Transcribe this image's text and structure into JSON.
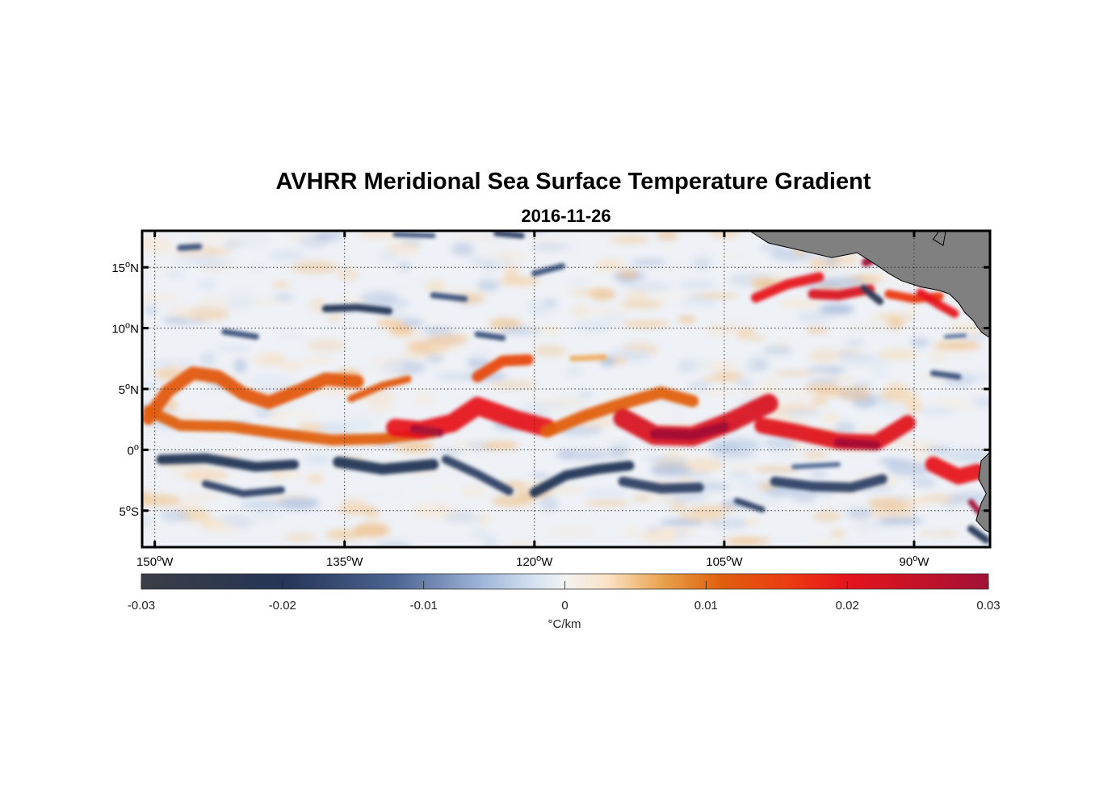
{
  "figure": {
    "title": "AVHRR Meridional Sea Surface Temperature Gradient",
    "subtitle": "2016-11-26"
  },
  "map": {
    "lon_range": [
      -151,
      -84
    ],
    "lat_range": [
      -8,
      18
    ],
    "lon_ticks": [
      {
        "value": -150,
        "label": "150°W"
      },
      {
        "value": -135,
        "label": "135°W"
      },
      {
        "value": -120,
        "label": "120°W"
      },
      {
        "value": -105,
        "label": "105°W"
      },
      {
        "value": -90,
        "label": "90°W"
      }
    ],
    "lat_ticks": [
      {
        "value": 15,
        "label": "15°N"
      },
      {
        "value": 10,
        "label": "10°N"
      },
      {
        "value": 5,
        "label": "5°N"
      },
      {
        "value": 0,
        "label": "0°"
      },
      {
        "value": -5,
        "label": "5°S"
      }
    ],
    "grid": true,
    "land_color": "#808080",
    "features": [
      {
        "type": "warm",
        "path": [
          [
            -150.5,
            2.6
          ],
          [
            -149,
            4.8
          ],
          [
            -147,
            6.3
          ],
          [
            -145,
            6.0
          ],
          [
            -143,
            4.6
          ],
          [
            -141,
            3.9
          ],
          [
            -138.5,
            4.9
          ],
          [
            -136.5,
            5.8
          ],
          [
            -134,
            5.6
          ]
        ],
        "width": 1.1,
        "value": 0.012
      },
      {
        "type": "warm",
        "path": [
          [
            -150.5,
            3.2
          ],
          [
            -148,
            2.0
          ],
          [
            -144,
            1.9
          ],
          [
            -140,
            1.3
          ],
          [
            -136,
            0.8
          ],
          [
            -132,
            0.9
          ],
          [
            -128,
            1.4
          ]
        ],
        "width": 0.9,
        "value": 0.011
      },
      {
        "type": "warm",
        "path": [
          [
            -131,
            1.8
          ],
          [
            -129,
            1.6
          ],
          [
            -126.5,
            2.2
          ],
          [
            -124.5,
            3.6
          ],
          [
            -121.5,
            2.5
          ],
          [
            -119,
            1.8
          ]
        ],
        "width": 1.5,
        "value": 0.02
      },
      {
        "type": "warm",
        "path": [
          [
            -129.5,
            1.7
          ],
          [
            -127.5,
            1.4
          ]
        ],
        "width": 0.7,
        "value": 0.03
      },
      {
        "type": "warm",
        "path": [
          [
            -134.5,
            4.2
          ],
          [
            -132,
            5.3
          ],
          [
            -130,
            5.8
          ]
        ],
        "width": 0.6,
        "value": 0.012
      },
      {
        "type": "warm",
        "path": [
          [
            -124.5,
            6.0
          ],
          [
            -122.5,
            7.3
          ],
          [
            -120.5,
            7.4
          ]
        ],
        "width": 0.9,
        "value": 0.014
      },
      {
        "type": "warm",
        "path": [
          [
            -119,
            1.5
          ],
          [
            -116,
            2.8
          ],
          [
            -113,
            3.8
          ],
          [
            -110,
            4.7
          ],
          [
            -107.5,
            4.0
          ]
        ],
        "width": 1.0,
        "value": 0.011
      },
      {
        "type": "warm",
        "path": [
          [
            -113,
            2.6
          ],
          [
            -110.5,
            1.2
          ],
          [
            -107.5,
            1.1
          ],
          [
            -104.5,
            2.3
          ],
          [
            -101.5,
            3.8
          ]
        ],
        "width": 1.6,
        "value": 0.022
      },
      {
        "type": "warm",
        "path": [
          [
            -110.5,
            1.3
          ],
          [
            -107.5,
            1.2
          ],
          [
            -105,
            1.9
          ]
        ],
        "width": 0.8,
        "value": 0.03
      },
      {
        "type": "warm",
        "path": [
          [
            -102,
            2.0
          ],
          [
            -99,
            1.4
          ],
          [
            -96,
            0.7
          ],
          [
            -93,
            0.6
          ],
          [
            -90.5,
            2.2
          ]
        ],
        "width": 1.3,
        "value": 0.021
      },
      {
        "type": "warm",
        "path": [
          [
            -96,
            0.6
          ],
          [
            -93,
            0.4
          ]
        ],
        "width": 0.7,
        "value": 0.03
      },
      {
        "type": "warm",
        "path": [
          [
            -102.5,
            12.5
          ],
          [
            -100,
            13.6
          ],
          [
            -97.5,
            14.2
          ]
        ],
        "width": 0.8,
        "value": 0.02
      },
      {
        "type": "warm",
        "path": [
          [
            -98,
            12.8
          ],
          [
            -96,
            12.7
          ],
          [
            -93.5,
            13.2
          ]
        ],
        "width": 0.8,
        "value": 0.022
      },
      {
        "type": "warm",
        "path": [
          [
            -93.8,
            15.4
          ],
          [
            -93.0,
            15.8
          ]
        ],
        "width": 0.7,
        "value": 0.03
      },
      {
        "type": "warm",
        "path": [
          [
            -92,
            12.8
          ],
          [
            -90,
            12.4
          ],
          [
            -88,
            12.6
          ]
        ],
        "width": 0.7,
        "value": 0.016
      },
      {
        "type": "warm",
        "path": [
          [
            -89.5,
            12.9
          ],
          [
            -88,
            11.9
          ],
          [
            -86.8,
            11.2
          ]
        ],
        "width": 0.7,
        "value": 0.02
      },
      {
        "type": "warm",
        "path": [
          [
            -88.5,
            -1.2
          ],
          [
            -86.5,
            -2.2
          ],
          [
            -85,
            -1.8
          ]
        ],
        "width": 1.3,
        "value": 0.02
      },
      {
        "type": "warm",
        "path": [
          [
            -85.5,
            -4.3
          ],
          [
            -84.8,
            -5.2
          ]
        ],
        "width": 0.5,
        "value": 0.03
      },
      {
        "type": "warm",
        "path": [
          [
            -117,
            7.5
          ],
          [
            -114.5,
            7.6
          ]
        ],
        "width": 0.5,
        "value": 0.006
      },
      {
        "type": "cold",
        "path": [
          [
            -149.5,
            -0.8
          ],
          [
            -146,
            -0.7
          ],
          [
            -142,
            -1.4
          ],
          [
            -139,
            -1.2
          ]
        ],
        "width": 0.8,
        "value": -0.02
      },
      {
        "type": "cold",
        "path": [
          [
            -135.5,
            -1.0
          ],
          [
            -132,
            -1.6
          ],
          [
            -128,
            -1.2
          ]
        ],
        "width": 0.9,
        "value": -0.02
      },
      {
        "type": "cold",
        "path": [
          [
            -146,
            -2.8
          ],
          [
            -143,
            -3.6
          ],
          [
            -140,
            -3.3
          ]
        ],
        "width": 0.6,
        "value": -0.018
      },
      {
        "type": "cold",
        "path": [
          [
            -127,
            -0.8
          ],
          [
            -124.5,
            -2.0
          ],
          [
            -122,
            -3.4
          ]
        ],
        "width": 0.7,
        "value": -0.018
      },
      {
        "type": "cold",
        "path": [
          [
            -120,
            -3.5
          ],
          [
            -117.5,
            -2.1
          ],
          [
            -115,
            -1.6
          ],
          [
            -112.5,
            -1.3
          ]
        ],
        "width": 0.8,
        "value": -0.02
      },
      {
        "type": "cold",
        "path": [
          [
            -113,
            -2.6
          ],
          [
            -110,
            -3.2
          ],
          [
            -107,
            -3.1
          ]
        ],
        "width": 0.8,
        "value": -0.018
      },
      {
        "type": "cold",
        "path": [
          [
            -101,
            -2.6
          ],
          [
            -98,
            -3.0
          ],
          [
            -95,
            -3.1
          ],
          [
            -92.5,
            -2.4
          ]
        ],
        "width": 0.8,
        "value": -0.018
      },
      {
        "type": "cold",
        "path": [
          [
            -104,
            -4.2
          ],
          [
            -102,
            -4.9
          ]
        ],
        "width": 0.5,
        "value": -0.018
      },
      {
        "type": "cold",
        "path": [
          [
            -99.5,
            -1.4
          ],
          [
            -96,
            -1.2
          ]
        ],
        "width": 0.4,
        "value": -0.012
      },
      {
        "type": "cold",
        "path": [
          [
            -148,
            16.6
          ],
          [
            -146.5,
            16.7
          ]
        ],
        "width": 0.5,
        "value": -0.015
      },
      {
        "type": "cold",
        "path": [
          [
            -136.5,
            11.6
          ],
          [
            -134,
            11.7
          ],
          [
            -131.5,
            11.4
          ]
        ],
        "width": 0.6,
        "value": -0.02
      },
      {
        "type": "cold",
        "path": [
          [
            -144.5,
            9.7
          ],
          [
            -142,
            9.3
          ]
        ],
        "width": 0.5,
        "value": -0.015
      },
      {
        "type": "cold",
        "path": [
          [
            -128,
            12.7
          ],
          [
            -125.5,
            12.4
          ]
        ],
        "width": 0.5,
        "value": -0.015
      },
      {
        "type": "cold",
        "path": [
          [
            -124.5,
            9.5
          ],
          [
            -122.5,
            9.2
          ]
        ],
        "width": 0.5,
        "value": -0.015
      },
      {
        "type": "cold",
        "path": [
          [
            -120,
            14.5
          ],
          [
            -117.8,
            15.1
          ]
        ],
        "width": 0.5,
        "value": -0.015
      },
      {
        "type": "cold",
        "path": [
          [
            -123,
            17.8
          ],
          [
            -121,
            17.6
          ]
        ],
        "width": 0.5,
        "value": -0.018
      },
      {
        "type": "cold",
        "path": [
          [
            -131,
            17.7
          ],
          [
            -128,
            17.6
          ]
        ],
        "width": 0.4,
        "value": -0.015
      },
      {
        "type": "cold",
        "path": [
          [
            -94,
            13.3
          ],
          [
            -92.7,
            12.2
          ]
        ],
        "width": 0.6,
        "value": -0.022
      },
      {
        "type": "cold",
        "path": [
          [
            -91.5,
            16.0
          ],
          [
            -90.5,
            15.4
          ]
        ],
        "width": 0.5,
        "value": -0.02
      },
      {
        "type": "cold",
        "path": [
          [
            -88.5,
            6.3
          ],
          [
            -86.5,
            6.0
          ]
        ],
        "width": 0.5,
        "value": -0.015
      },
      {
        "type": "cold",
        "path": [
          [
            -87.5,
            9.3
          ],
          [
            -86,
            9.4
          ]
        ],
        "width": 0.3,
        "value": -0.012
      },
      {
        "type": "cold",
        "path": [
          [
            -85.5,
            -6.5
          ],
          [
            -84.3,
            -7.4
          ]
        ],
        "width": 0.6,
        "value": -0.02
      }
    ],
    "land": [
      [
        [
          -103,
          18
        ],
        [
          -101.5,
          17.0
        ],
        [
          -99,
          16.4
        ],
        [
          -96.5,
          15.8
        ],
        [
          -94.5,
          16.2
        ],
        [
          -93,
          15.2
        ],
        [
          -92,
          14.5
        ],
        [
          -91,
          13.9
        ],
        [
          -89.5,
          13.4
        ],
        [
          -88,
          13.1
        ],
        [
          -87.2,
          12.8
        ],
        [
          -86.5,
          12.1
        ],
        [
          -86,
          11.3
        ],
        [
          -85.3,
          10.6
        ],
        [
          -85,
          10.1
        ],
        [
          -84.6,
          9.6
        ],
        [
          -84,
          9.2
        ],
        [
          -84,
          18
        ],
        [
          -88,
          18
        ],
        [
          -88.5,
          17.3
        ],
        [
          -87.7,
          16.8
        ],
        [
          -87.5,
          18
        ]
      ],
      [
        [
          -84,
          -0.2
        ],
        [
          -84.7,
          -0.9
        ],
        [
          -84.9,
          -2.4
        ],
        [
          -84.3,
          -3.6
        ],
        [
          -84.7,
          -4.4
        ],
        [
          -85.1,
          -5.8
        ],
        [
          -84.4,
          -6.6
        ],
        [
          -84,
          -6.8
        ]
      ]
    ]
  },
  "colorbar": {
    "min": -0.03,
    "max": 0.03,
    "ticks": [
      "-0.03",
      "-0.02",
      "-0.01",
      "0",
      "0.01",
      "0.02",
      "0.03"
    ],
    "tick_values": [
      -0.03,
      -0.02,
      -0.01,
      0,
      0.01,
      0.02,
      0.03
    ],
    "label": "°C/km",
    "stops": [
      {
        "value": -0.03,
        "color": "#3b3e44"
      },
      {
        "value": -0.02,
        "color": "#243556"
      },
      {
        "value": -0.012,
        "color": "#4c6592"
      },
      {
        "value": -0.006,
        "color": "#9db4d9"
      },
      {
        "value": -0.002,
        "color": "#d8e4f1"
      },
      {
        "value": 0,
        "color": "#f2f2f2"
      },
      {
        "value": 0.003,
        "color": "#fbe3c6"
      },
      {
        "value": 0.007,
        "color": "#e9a04a"
      },
      {
        "value": 0.011,
        "color": "#e0600e"
      },
      {
        "value": 0.016,
        "color": "#ec3a12"
      },
      {
        "value": 0.02,
        "color": "#e6131c"
      },
      {
        "value": 0.03,
        "color": "#a21236"
      }
    ]
  }
}
